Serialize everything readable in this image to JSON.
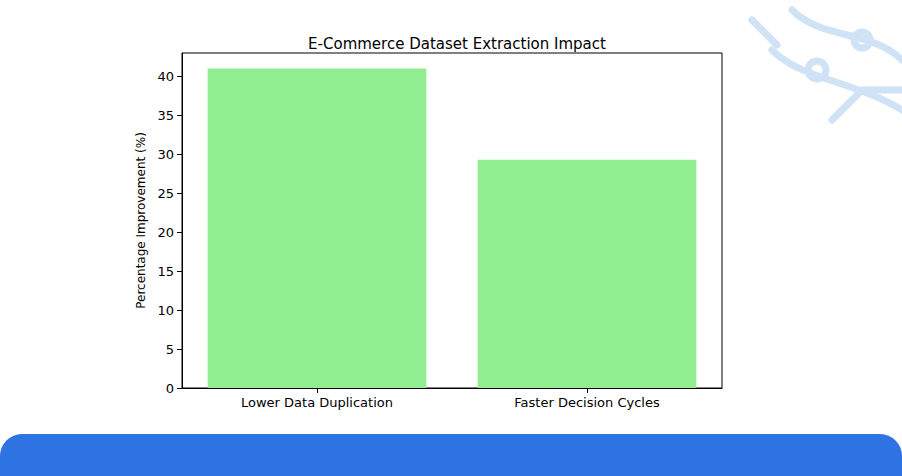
{
  "chart_data": {
    "type": "bar",
    "title": "E-Commerce Dataset Extraction Impact",
    "y_label": "Percentage Improvement (%)",
    "categories": [
      "Lower Data Duplication",
      "Faster Decision Cycles"
    ],
    "values": [
      41.0,
      29.3
    ],
    "color": "#90ee90",
    "ylim": [
      0,
      43
    ],
    "yticks": [
      0,
      5,
      10,
      15,
      20,
      25,
      30,
      35,
      40
    ],
    "grid": false
  }
}
